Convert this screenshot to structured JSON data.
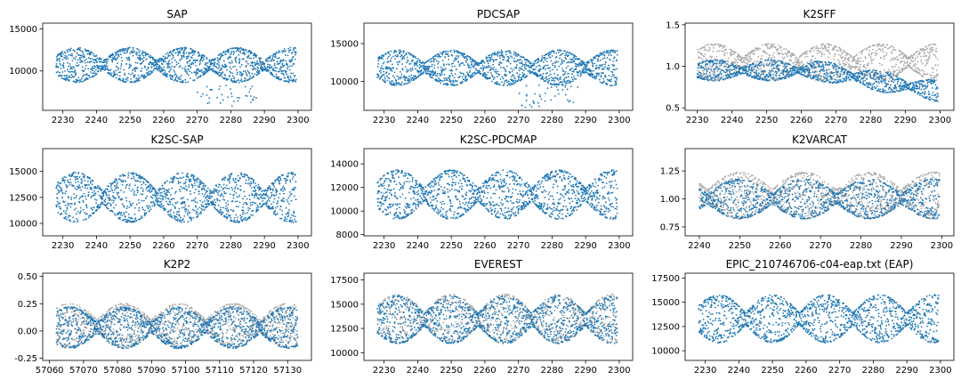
{
  "colors": {
    "primary": "#1f77b4",
    "secondary": "#a9a9a9"
  },
  "chart_data": [
    {
      "type": "scatter",
      "title": "SAP",
      "xlim": [
        2224,
        2304
      ],
      "ylim": [
        5300,
        15700
      ],
      "xticks": [
        "2230",
        "2240",
        "2250",
        "2260",
        "2270",
        "2280",
        "2290",
        "2300"
      ],
      "yticks": [
        "10000",
        "15000"
      ],
      "series": [
        {
          "color": "primary",
          "model": {
            "x_start": 2228,
            "x_end": 2299.5,
            "base": 10700,
            "amp": 3300,
            "period": 32,
            "phase": 2242,
            "count": 1500,
            "outliers": 40,
            "outlier_low": 5800
          }
        }
      ]
    },
    {
      "type": "scatter",
      "title": "PDCSAP",
      "xlim": [
        2224,
        2304
      ],
      "ylim": [
        6200,
        17700
      ],
      "xticks": [
        "2230",
        "2240",
        "2250",
        "2260",
        "2270",
        "2280",
        "2290",
        "2300"
      ],
      "yticks": [
        "10000",
        "15000"
      ],
      "series": [
        {
          "color": "primary",
          "model": {
            "x_start": 2228,
            "x_end": 2299.5,
            "base": 11800,
            "amp": 3700,
            "period": 32,
            "phase": 2242,
            "count": 1500,
            "outliers": 40,
            "outlier_low": 6600
          }
        }
      ]
    },
    {
      "type": "scatter",
      "title": "K2SFF",
      "xlim": [
        2226.5,
        2304
      ],
      "ylim": [
        0.47,
        1.52
      ],
      "xticks": [
        "2230",
        "2240",
        "2250",
        "2260",
        "2270",
        "2280",
        "2290",
        "2300"
      ],
      "yticks": [
        "0.5",
        "1.0",
        "1.5"
      ],
      "series": [
        {
          "color": "secondary",
          "model": {
            "x_start": 2230,
            "x_end": 2299.5,
            "base": 1.05,
            "amp": 0.35,
            "period": 32,
            "phase": 2243,
            "count": 1200
          }
        },
        {
          "color": "primary",
          "model": {
            "x_start": 2230,
            "x_end": 2299.5,
            "base": 0.95,
            "amp": 0.2,
            "period": 32,
            "phase": 2243,
            "count": 1200,
            "trend": -0.25
          }
        }
      ]
    },
    {
      "type": "scatter",
      "title": "K2SC-SAP",
      "xlim": [
        2224,
        2304
      ],
      "ylim": [
        8800,
        17200
      ],
      "xticks": [
        "2230",
        "2240",
        "2250",
        "2260",
        "2270",
        "2280",
        "2290",
        "2300"
      ],
      "yticks": [
        "10000",
        "12500",
        "15000"
      ],
      "series": [
        {
          "color": "primary",
          "model": {
            "x_start": 2228,
            "x_end": 2299.5,
            "base": 12500,
            "amp": 3800,
            "period": 32,
            "phase": 2242,
            "count": 1500
          }
        }
      ]
    },
    {
      "type": "scatter",
      "title": "K2SC-PDCMAP",
      "xlim": [
        2224,
        2304
      ],
      "ylim": [
        7900,
        15300
      ],
      "xticks": [
        "2230",
        "2240",
        "2250",
        "2260",
        "2270",
        "2280",
        "2290",
        "2300"
      ],
      "yticks": [
        "8000",
        "10000",
        "12000",
        "14000"
      ],
      "series": [
        {
          "color": "primary",
          "model": {
            "x_start": 2228,
            "x_end": 2299.5,
            "base": 11400,
            "amp": 3300,
            "period": 32,
            "phase": 2242,
            "count": 1500
          }
        }
      ]
    },
    {
      "type": "scatter",
      "title": "K2VARCAT",
      "xlim": [
        2236.5,
        2303
      ],
      "ylim": [
        0.67,
        1.45
      ],
      "xticks": [
        "2240",
        "2250",
        "2260",
        "2270",
        "2280",
        "2290",
        "2300"
      ],
      "yticks": [
        "0.75",
        "1.00",
        "1.25"
      ],
      "series": [
        {
          "color": "secondary",
          "model": {
            "x_start": 2240,
            "x_end": 2299.5,
            "base": 1.03,
            "amp": 0.33,
            "period": 32,
            "phase": 2242,
            "count": 1200
          }
        },
        {
          "color": "primary",
          "model": {
            "x_start": 2240,
            "x_end": 2299.5,
            "base": 1.0,
            "amp": 0.28,
            "period": 32,
            "phase": 2242,
            "count": 1200
          }
        }
      ]
    },
    {
      "type": "scatter",
      "title": "K2P2",
      "xlim": [
        57058,
        57137
      ],
      "ylim": [
        -0.27,
        0.53
      ],
      "xticks": [
        "57060",
        "57070",
        "57080",
        "57090",
        "57100",
        "57110",
        "57120",
        "57130"
      ],
      "yticks": [
        "-0.25",
        "0.00",
        "0.25",
        "0.50"
      ],
      "series": [
        {
          "color": "secondary",
          "model": {
            "x_start": 57062,
            "x_end": 57133,
            "base": 0.05,
            "amp": 0.32,
            "period": 32,
            "phase": 57074,
            "count": 1200
          }
        },
        {
          "color": "primary",
          "model": {
            "x_start": 57062,
            "x_end": 57133,
            "base": 0.03,
            "amp": 0.3,
            "period": 32,
            "phase": 57074,
            "count": 1400
          }
        }
      ]
    },
    {
      "type": "scatter",
      "title": "EVEREST",
      "xlim": [
        2224,
        2304
      ],
      "ylim": [
        9200,
        18200
      ],
      "xticks": [
        "2230",
        "2240",
        "2250",
        "2260",
        "2270",
        "2280",
        "2290",
        "2300"
      ],
      "yticks": [
        "10000",
        "12500",
        "15000",
        "17500"
      ],
      "series": [
        {
          "color": "secondary",
          "model": {
            "x_start": 2228,
            "x_end": 2299.5,
            "base": 13500,
            "amp": 4000,
            "period": 32,
            "phase": 2242,
            "count": 900
          }
        },
        {
          "color": "primary",
          "model": {
            "x_start": 2228,
            "x_end": 2299.5,
            "base": 13400,
            "amp": 3900,
            "period": 32,
            "phase": 2242,
            "count": 1400
          }
        }
      ]
    },
    {
      "type": "scatter",
      "title": "EPIC_210746706-c04-eap.txt (EAP)",
      "xlim": [
        2224,
        2304
      ],
      "ylim": [
        9000,
        18000
      ],
      "xticks": [
        "2230",
        "2240",
        "2250",
        "2260",
        "2270",
        "2280",
        "2290",
        "2300"
      ],
      "yticks": [
        "10000",
        "12500",
        "15000",
        "17500"
      ],
      "series": [
        {
          "color": "primary",
          "model": {
            "x_start": 2228,
            "x_end": 2299.5,
            "base": 13300,
            "amp": 3900,
            "period": 32,
            "phase": 2242,
            "count": 1500
          }
        }
      ]
    }
  ]
}
